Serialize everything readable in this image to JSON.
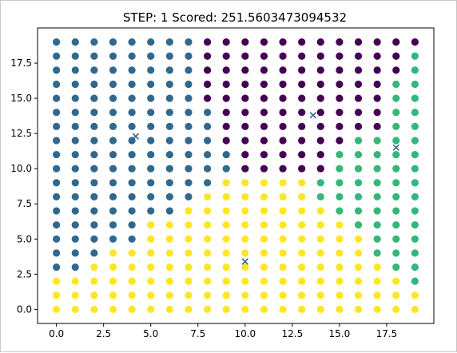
{
  "chart_data": {
    "type": "scatter",
    "title": "STEP: 1 Scored: 251.5603473094532",
    "xlabel": "",
    "ylabel": "",
    "xlim": [
      -1.0,
      20.0
    ],
    "ylim": [
      -1.0,
      20.0
    ],
    "xticks": [
      0.0,
      2.5,
      5.0,
      7.5,
      10.0,
      12.5,
      15.0,
      17.5
    ],
    "xtick_labels": [
      "0.0",
      "2.5",
      "5.0",
      "7.5",
      "10.0",
      "12.5",
      "15.0",
      "17.5"
    ],
    "yticks": [
      0.0,
      2.5,
      5.0,
      7.5,
      10.0,
      12.5,
      15.0,
      17.5
    ],
    "ytick_labels": [
      "0.0",
      "2.5",
      "5.0",
      "7.5",
      "10.0",
      "12.5",
      "15.0",
      "17.5"
    ],
    "grid": false,
    "grid_x": [
      0,
      1,
      2,
      3,
      4,
      5,
      6,
      7,
      8,
      9,
      10,
      11,
      12,
      13,
      14,
      15,
      16,
      17,
      18,
      19
    ],
    "grid_y": [
      0,
      1,
      2,
      3,
      4,
      5,
      6,
      7,
      8,
      9,
      10,
      11,
      12,
      13,
      14,
      15,
      16,
      17,
      18,
      19
    ],
    "cluster_colors": [
      "#440154",
      "#31688e",
      "#35b779",
      "#fde725"
    ],
    "cluster_rows_top_to_bottom": [
      "11111111000000000000",
      "11111111000000000002",
      "11111111000000000002",
      "11111111000000000022",
      "11111111000000000022",
      "11111111100000000022",
      "11111111100000000022",
      "11111111100000002222",
      "11111111110000022222",
      "11111111110000022222",
      "11111111133333222222",
      "11111111333333222222",
      "11111113333333322222",
      "11111333333333332222",
      "11111333333333333222",
      "11133333333333333222",
      "11333333333333333322",
      "33333333333333333332",
      "33333333333333333333",
      "33333333333333333333"
    ],
    "centroid_color": "#31688e",
    "centroids": [
      {
        "x": 4.2,
        "y": 12.3
      },
      {
        "x": 13.6,
        "y": 13.8
      },
      {
        "x": 18.0,
        "y": 11.5
      },
      {
        "x": 10.0,
        "y": 3.4
      }
    ]
  }
}
